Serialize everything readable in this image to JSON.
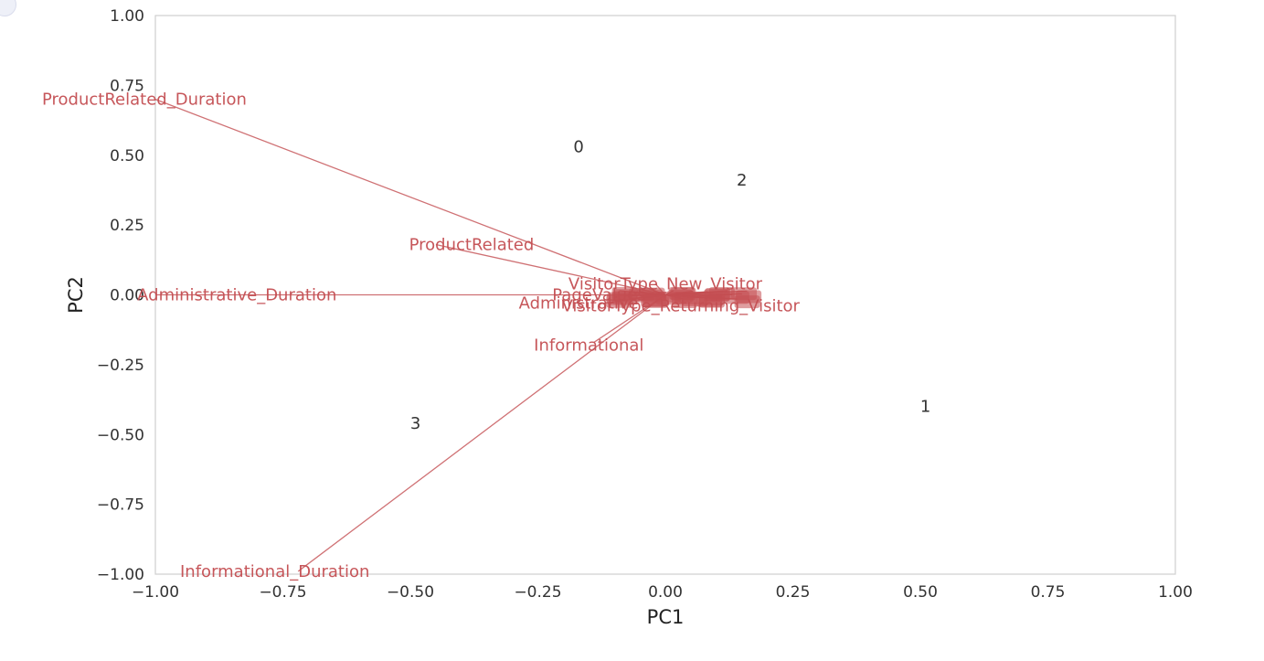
{
  "chart_data": {
    "type": "scatter",
    "title": "",
    "xlabel": "PC1",
    "ylabel": "PC2",
    "xlim": [
      -1.0,
      1.0
    ],
    "ylim": [
      -1.0,
      1.0
    ],
    "grid": false,
    "x_ticks": [
      "−1.00",
      "−0.75",
      "−0.50",
      "−0.25",
      "0.00",
      "0.25",
      "0.50",
      "0.75",
      "1.00"
    ],
    "y_ticks": [
      "−1.00",
      "−0.75",
      "−0.50",
      "−0.25",
      "0.00",
      "0.25",
      "0.50",
      "0.75",
      "1.00"
    ],
    "x_tick_values": [
      -1.0,
      -0.75,
      -0.5,
      -0.25,
      0.0,
      0.25,
      0.5,
      0.75,
      1.0
    ],
    "y_tick_values": [
      -1.0,
      -0.75,
      -0.5,
      -0.25,
      0.0,
      0.25,
      0.5,
      0.75,
      1.0
    ],
    "points": [
      {
        "label": "0",
        "x": -0.17,
        "y": 0.53
      },
      {
        "label": "2",
        "x": 0.15,
        "y": 0.41
      },
      {
        "label": "1",
        "x": 0.51,
        "y": -0.4
      },
      {
        "label": "3",
        "x": -0.49,
        "y": -0.46
      }
    ],
    "loadings": [
      {
        "label": "ProductRelated_Duration",
        "x": -1.0,
        "y": 0.7,
        "lx": -0.98,
        "ly": 0.7
      },
      {
        "label": "ProductRelated",
        "x": -0.45,
        "y": 0.18,
        "lx": -0.38,
        "ly": 0.18
      },
      {
        "label": "Administrative_Duration",
        "x": -1.0,
        "y": 0.0,
        "lx": -0.84,
        "ly": 0.0
      },
      {
        "label": "Informational_Duration",
        "x": -0.72,
        "y": -0.99,
        "lx": -0.74,
        "ly": -0.99
      },
      {
        "label": "Informational",
        "x": -0.14,
        "y": -0.17,
        "lx": -0.15,
        "ly": -0.18
      },
      {
        "label": "VisitorType_New_Visitor",
        "x": -0.02,
        "y": 0.04,
        "lx": 0.0,
        "ly": 0.04
      },
      {
        "label": "VisitorType_Returning_Visitor",
        "x": 0.0,
        "y": -0.02,
        "lx": 0.03,
        "ly": -0.04
      },
      {
        "label": "Administrative",
        "x": -0.12,
        "y": -0.03,
        "lx": -0.17,
        "ly": -0.03
      },
      {
        "label": "PageValues",
        "x": -0.08,
        "y": 0.0,
        "lx": -0.13,
        "ly": 0.0
      }
    ],
    "loading_cluster_count": 28,
    "colors": {
      "point_label": "#333333",
      "loading": "#c44e52",
      "axis": "#cfcfcf",
      "tick": "#333333"
    }
  }
}
